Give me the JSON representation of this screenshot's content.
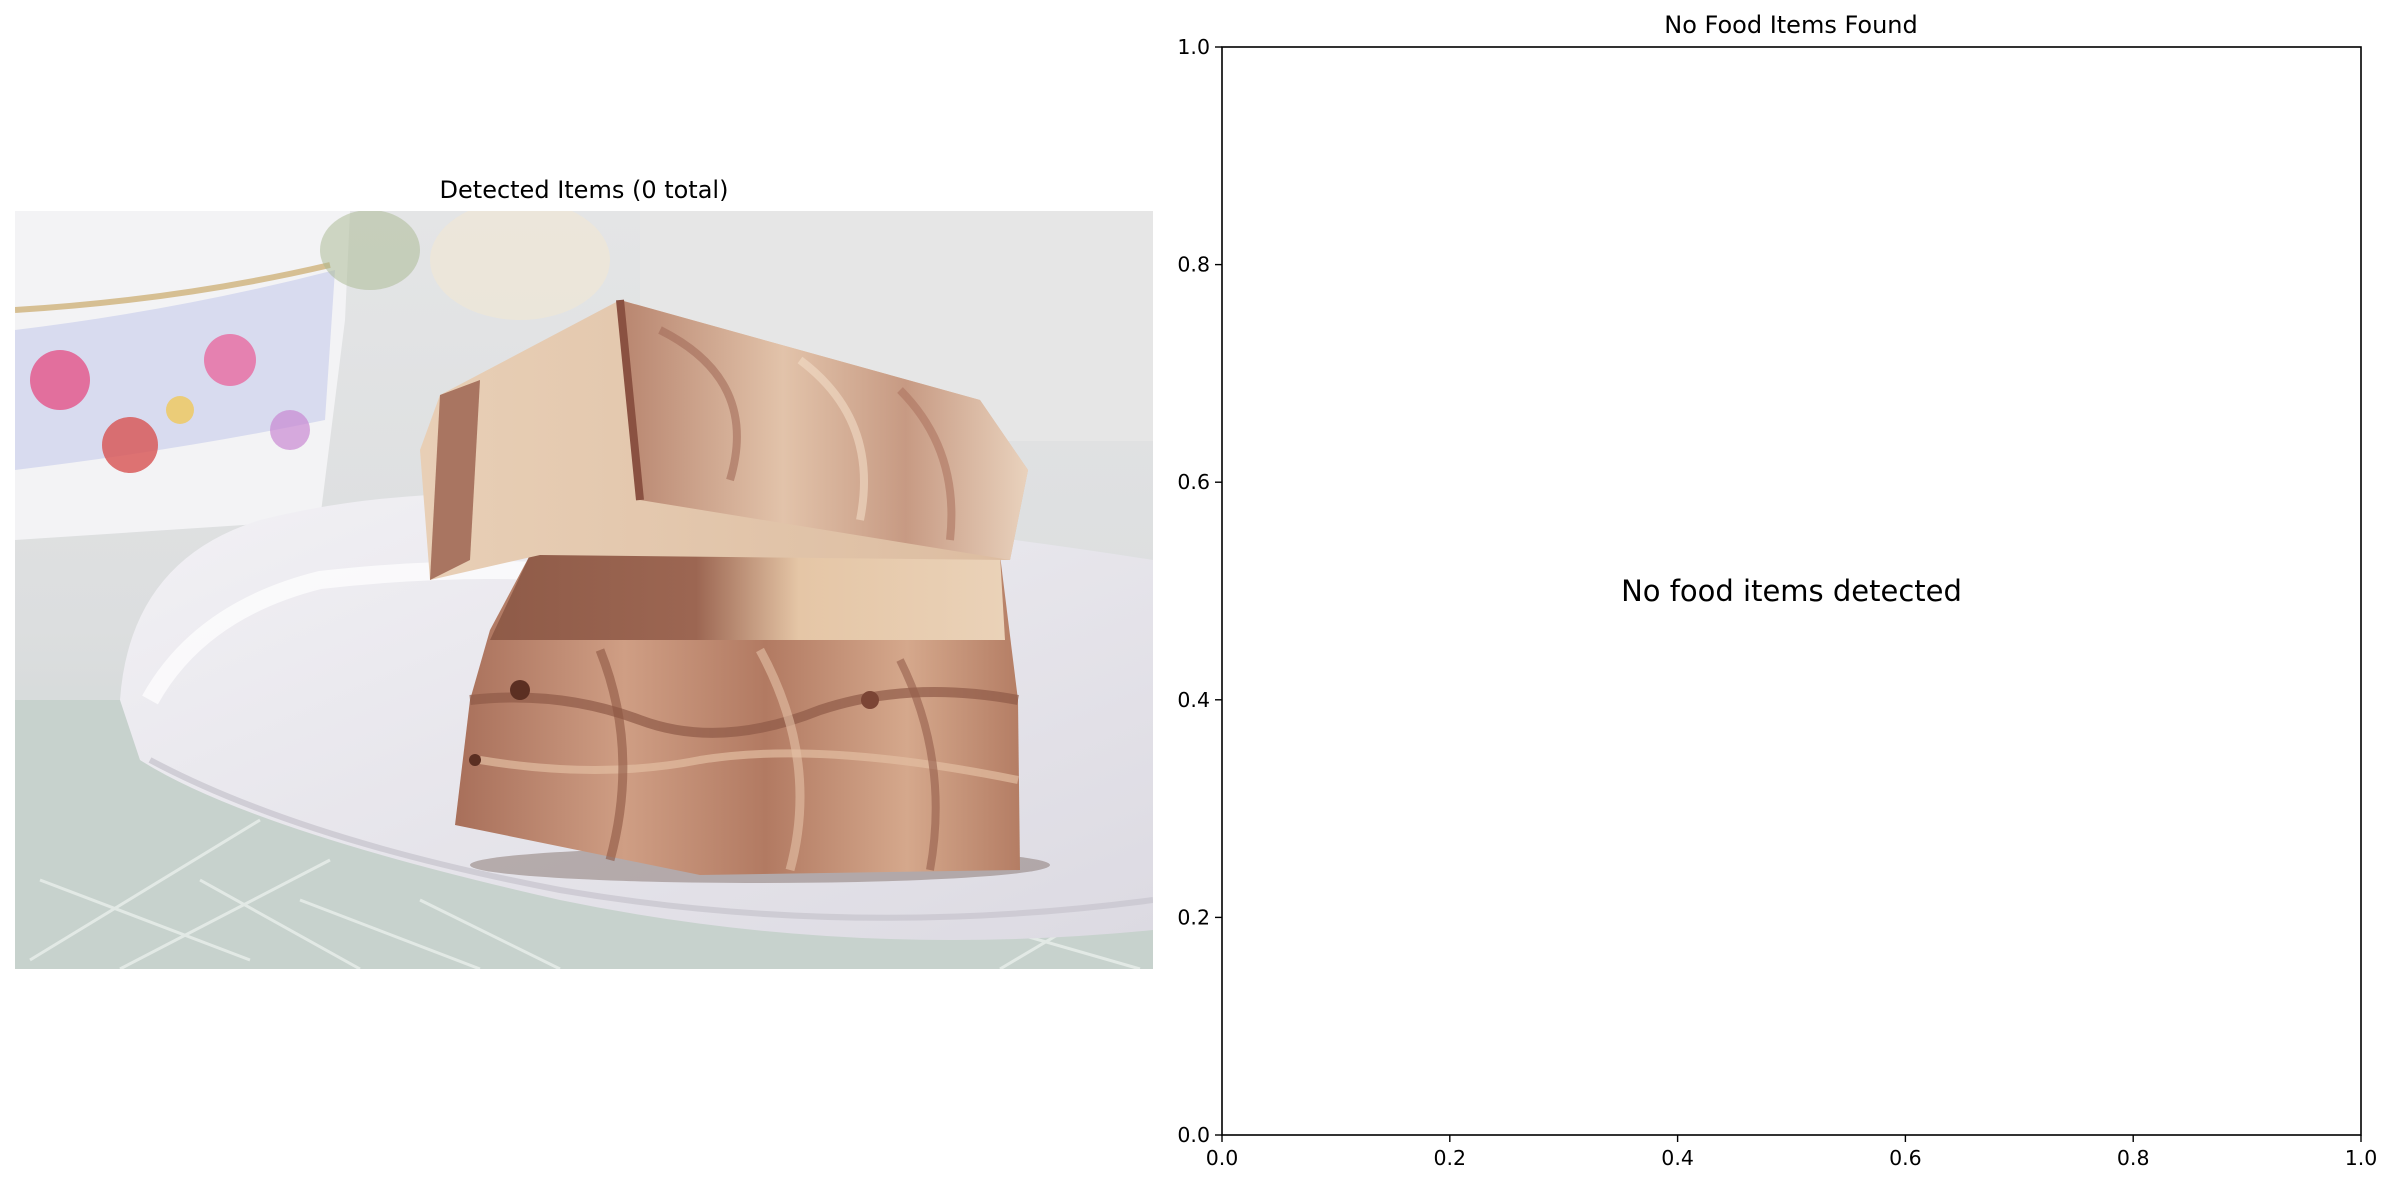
{
  "left_panel": {
    "title": "Detected Items (0 total)",
    "photo_subject": "two swirled chocolate and vanilla fudge squares on a white scalloped plate, floral teacup behind, cut-glass surface below"
  },
  "right_panel": {
    "title": "No Food Items Found",
    "message": "No food items detected"
  },
  "chart_data": {
    "type": "scatter",
    "title": "No Food Items Found",
    "xlabel": "",
    "ylabel": "",
    "xlim": [
      0.0,
      1.0
    ],
    "ylim": [
      0.0,
      1.0
    ],
    "xticks": [
      "0.0",
      "0.2",
      "0.4",
      "0.6",
      "0.8",
      "1.0"
    ],
    "yticks": [
      "0.0",
      "0.2",
      "0.4",
      "0.6",
      "0.8",
      "1.0"
    ],
    "series": [],
    "annotations": [
      {
        "text": "No food items detected",
        "x": 0.5,
        "y": 0.5
      }
    ],
    "grid": false
  },
  "colors": {
    "axes": "#000000",
    "background": "#ffffff",
    "fudge_light": "#e8cdb0",
    "fudge_dark": "#8b5a48",
    "plate": "#e9e8ee",
    "tablecloth": "#c9d4cf"
  }
}
